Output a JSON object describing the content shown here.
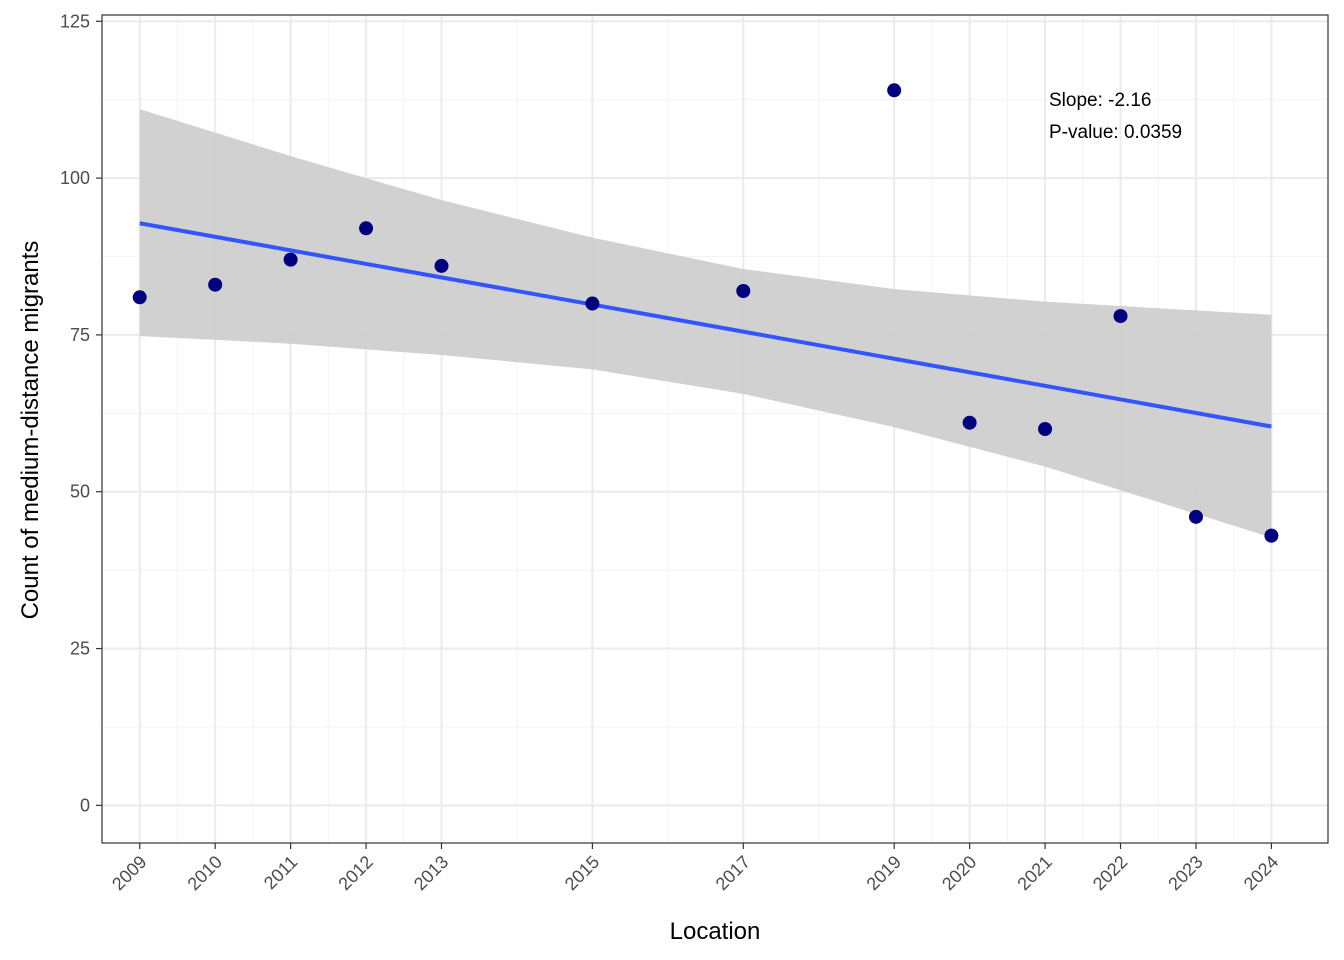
{
  "chart_data": {
    "type": "scatter",
    "xlabel": "Location",
    "ylabel": "Count of medium-distance migrants",
    "x": [
      2009,
      2010,
      2011,
      2012,
      2013,
      2015,
      2017,
      2019,
      2020,
      2021,
      2022,
      2023,
      2024
    ],
    "y": [
      81,
      83,
      87,
      92,
      86,
      80,
      82,
      114,
      61,
      60,
      78,
      46,
      43
    ],
    "x_ticks": [
      "2009",
      "2010",
      "2011",
      "2012",
      "2013",
      "2015",
      "2017",
      "2019",
      "2020",
      "2021",
      "2022",
      "2023",
      "2024"
    ],
    "y_ticks": [
      "0",
      "25",
      "50",
      "75",
      "100",
      "125"
    ],
    "xlim": [
      2008.5,
      2024.75
    ],
    "ylim": [
      -6,
      126
    ],
    "grid": true,
    "trend": {
      "x": [
        2009,
        2024
      ],
      "y": [
        92.8,
        60.4
      ],
      "ci_lower": [
        74.8,
        42.7
      ],
      "ci_upper": [
        111.0,
        78.2
      ],
      "ci_x_mid": [
        2009,
        2011,
        2013,
        2015,
        2017,
        2019,
        2021,
        2024
      ],
      "ci_lower_mid": [
        74.8,
        73.6,
        71.8,
        69.5,
        65.6,
        60.3,
        54.0,
        42.7
      ],
      "ci_upper_mid": [
        111.0,
        103.5,
        96.5,
        90.5,
        85.5,
        82.3,
        80.3,
        78.2
      ]
    },
    "annotation": {
      "slope_text": "Slope:  -2.16",
      "pvalue_text": "P-value:  0.0359"
    },
    "colors": {
      "points": "#00007f",
      "line": "#3355ff",
      "ribbon": "#cccccc",
      "grid_major": "#ebebeb",
      "grid_minor": "#f3f3f3"
    }
  }
}
